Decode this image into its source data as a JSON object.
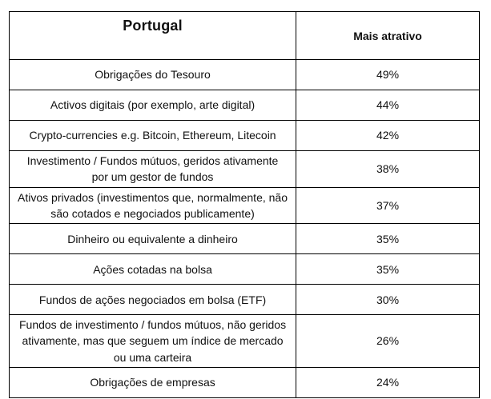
{
  "table": {
    "header": {
      "country": "Portugal",
      "metric": "Mais atrativo"
    },
    "rows": [
      {
        "label": "Obrigações do Tesouro",
        "value": "49%"
      },
      {
        "label": "Activos digitais (por exemplo, arte digital)",
        "value": "44%"
      },
      {
        "label": "Crypto-currencies e.g. Bitcoin, Ethereum, Litecoin",
        "value": "42%"
      },
      {
        "label": "Investimento / Fundos mútuos, geridos ativamente por um gestor de fundos",
        "value": "38%"
      },
      {
        "label": "Ativos privados (investimentos que, normalmente, não são cotados e negociados publicamente)",
        "value": "37%"
      },
      {
        "label": "Dinheiro ou equivalente a dinheiro",
        "value": "35%"
      },
      {
        "label": "Ações cotadas na bolsa",
        "value": "35%"
      },
      {
        "label": "Fundos de ações negociados em bolsa (ETF)",
        "value": "30%"
      },
      {
        "label": "Fundos de investimento / fundos mútuos, não geridos ativamente, mas que seguem um índice de mercado ou uma carteira",
        "value": "26%"
      },
      {
        "label": "Obrigações de empresas",
        "value": "24%"
      }
    ]
  },
  "chart_data": {
    "type": "table",
    "title": "Portugal",
    "value_column": "Mais atrativo",
    "value_format": "percent",
    "categories": [
      "Obrigações do Tesouro",
      "Activos digitais (por exemplo, arte digital)",
      "Crypto-currencies e.g. Bitcoin, Ethereum, Litecoin",
      "Investimento / Fundos mútuos, geridos ativamente por um gestor de fundos",
      "Ativos privados (investimentos que, normalmente, não são cotados e negociados publicamente)",
      "Dinheiro ou equivalente a dinheiro",
      "Ações cotadas na bolsa",
      "Fundos de ações negociados em bolsa (ETF)",
      "Fundos de investimento / fundos mútuos, não geridos ativamente, mas que seguem um índice de mercado ou uma carteira",
      "Obrigações de empresas"
    ],
    "values": [
      49,
      44,
      42,
      38,
      37,
      35,
      35,
      30,
      26,
      24
    ],
    "colors": {
      "border": "#000000",
      "background": "#ffffff",
      "text": "#111111"
    }
  }
}
